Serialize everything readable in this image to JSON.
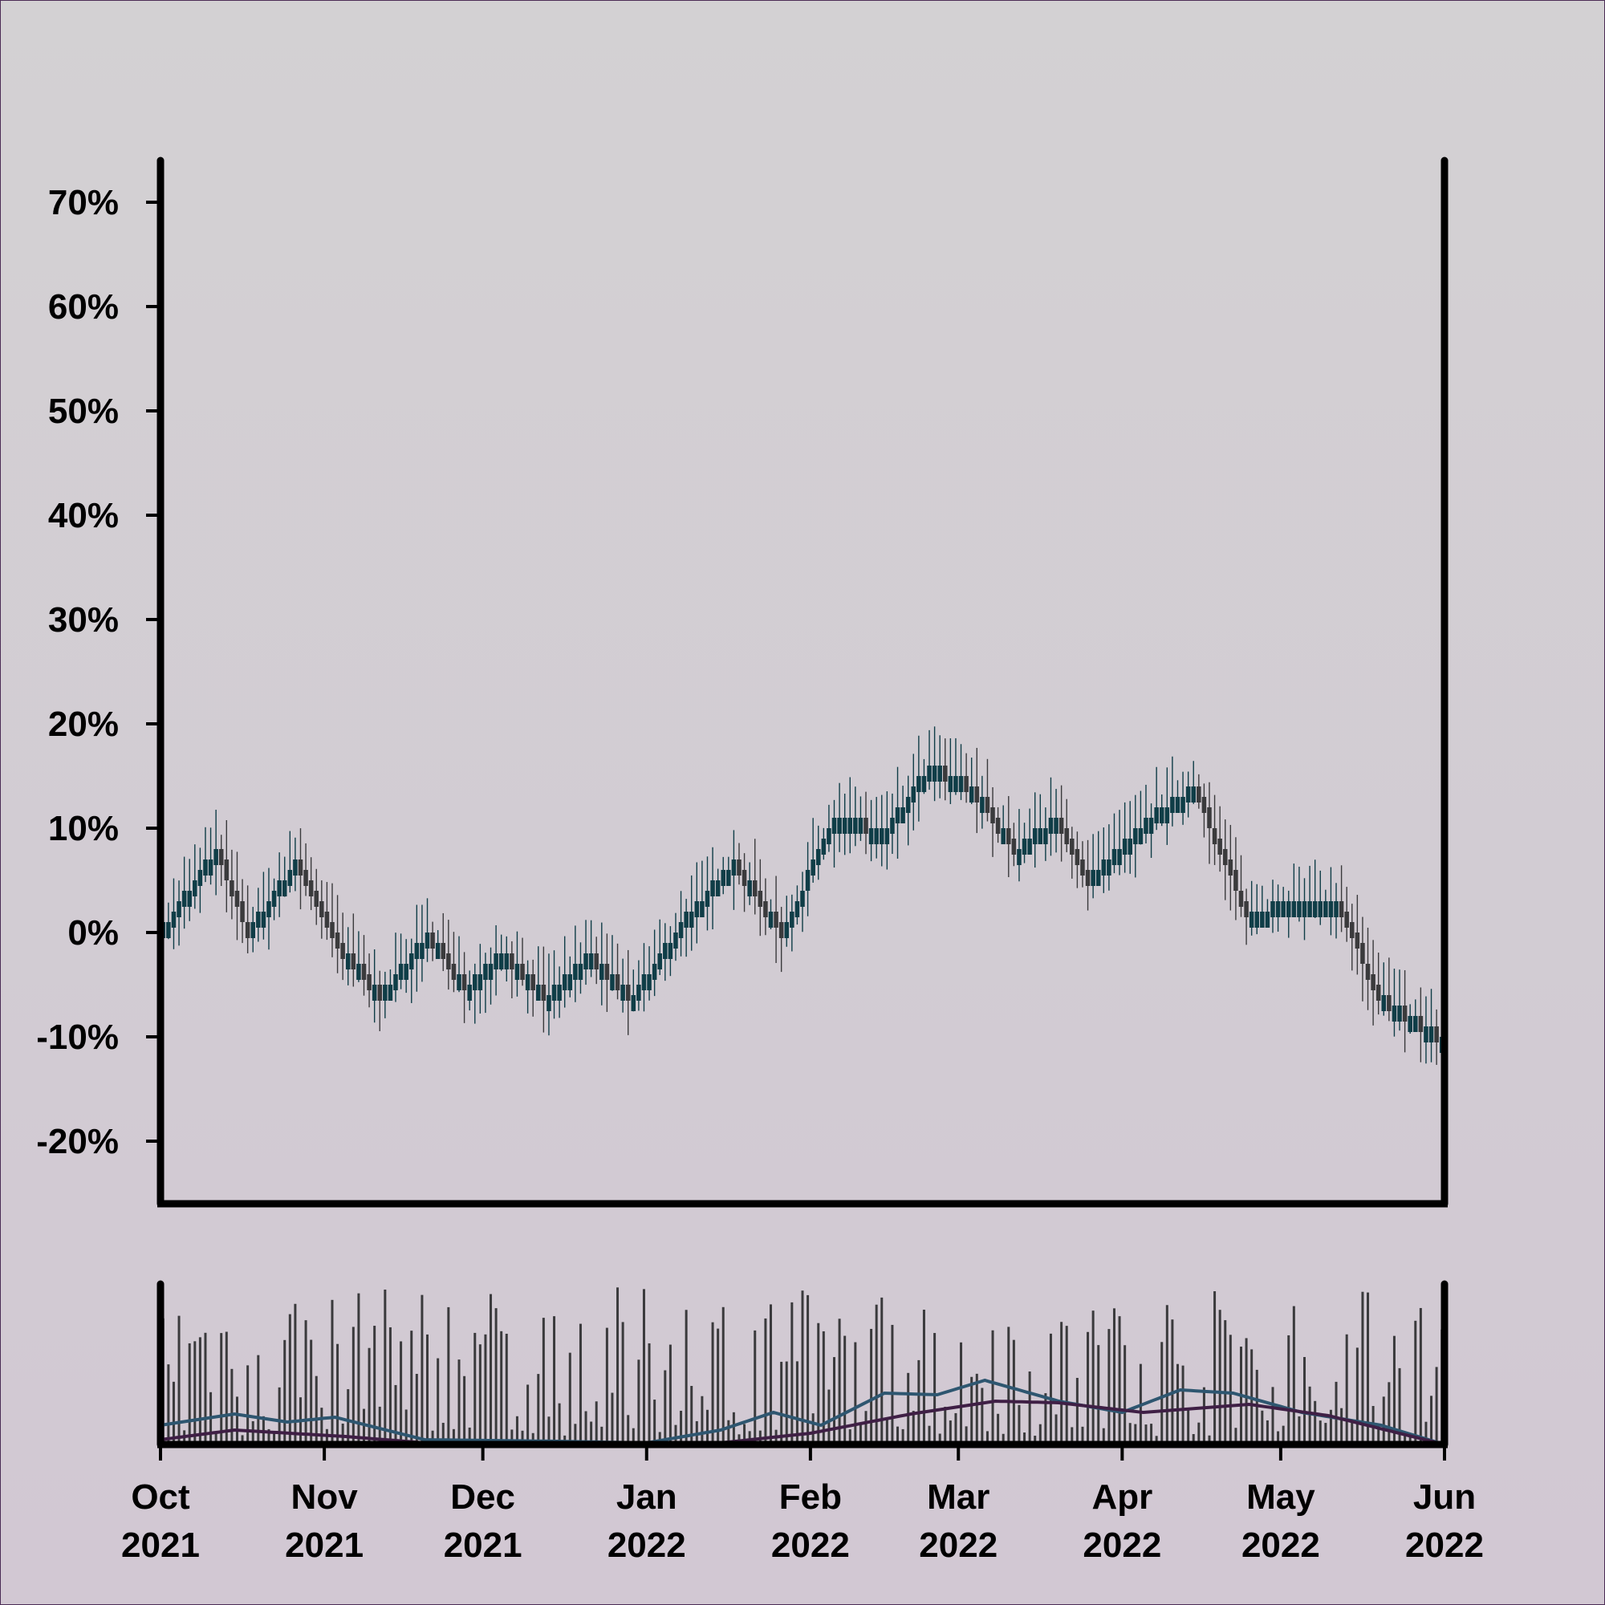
{
  "chart_data": [
    {
      "type": "candlestick",
      "panel": "price",
      "title": "",
      "xlabel": "",
      "ylabel": "",
      "ylim": [
        -26,
        74
      ],
      "y_ticks": [
        70,
        60,
        50,
        40,
        30,
        20,
        10,
        0,
        -10,
        -20
      ],
      "y_tick_labels": [
        "70%",
        "60%",
        "50%",
        "40%",
        "30%",
        "20%",
        "10%",
        "0%",
        "-10%",
        "-20%"
      ],
      "up_color": "#0f3d47",
      "down_color": "#3a3a3c",
      "grid": false,
      "x_range": [
        "2021-10-01",
        "2022-06-01"
      ],
      "close_path": [
        [
          "2021-10-01",
          0
        ],
        [
          "2021-10-12",
          8
        ],
        [
          "2021-10-18",
          0
        ],
        [
          "2021-10-27",
          7
        ],
        [
          "2021-11-04",
          -1
        ],
        [
          "2021-11-12",
          -6
        ],
        [
          "2021-11-21",
          0
        ],
        [
          "2021-11-28",
          -5
        ],
        [
          "2021-12-05",
          -2
        ],
        [
          "2021-12-14",
          -6
        ],
        [
          "2021-12-21",
          -2
        ],
        [
          "2021-12-30",
          -6
        ],
        [
          "2022-01-08",
          1
        ],
        [
          "2022-01-18",
          7
        ],
        [
          "2022-01-27",
          0
        ],
        [
          "2022-02-06",
          11
        ],
        [
          "2022-02-16",
          10
        ],
        [
          "2022-02-24",
          16
        ],
        [
          "2022-03-04",
          14
        ],
        [
          "2022-03-12",
          8
        ],
        [
          "2022-03-20",
          11
        ],
        [
          "2022-03-26",
          5
        ],
        [
          "2022-04-06",
          11
        ],
        [
          "2022-04-15",
          14
        ],
        [
          "2022-04-25",
          2
        ],
        [
          "2022-05-05",
          3
        ],
        [
          "2022-05-12",
          3
        ],
        [
          "2022-05-20",
          -6
        ],
        [
          "2022-06-01",
          -10
        ]
      ]
    },
    {
      "type": "bar",
      "panel": "volume",
      "title": "",
      "xlabel": "",
      "ylabel": "",
      "bar_color": "#3a3a3c",
      "moving_averages": [
        {
          "color": "#2e5670",
          "points": [
            [
              "2021-10-01",
              12
            ],
            [
              "2021-10-15",
              19
            ],
            [
              "2021-10-25",
              14
            ],
            [
              "2021-11-03",
              17
            ],
            [
              "2021-11-20",
              3
            ],
            [
              "2021-12-15",
              2
            ],
            [
              "2022-01-01",
              1
            ],
            [
              "2022-01-15",
              9
            ],
            [
              "2022-01-25",
              20
            ],
            [
              "2022-02-03",
              12
            ],
            [
              "2022-02-15",
              32
            ],
            [
              "2022-02-25",
              31
            ],
            [
              "2022-03-06",
              40
            ],
            [
              "2022-03-20",
              27
            ],
            [
              "2022-04-01",
              20
            ],
            [
              "2022-04-12",
              34
            ],
            [
              "2022-04-22",
              32
            ],
            [
              "2022-05-05",
              20
            ],
            [
              "2022-05-20",
              12
            ],
            [
              "2022-06-01",
              0
            ]
          ]
        },
        {
          "color": "#3f1f45",
          "points": [
            [
              "2021-10-01",
              3
            ],
            [
              "2021-10-15",
              9
            ],
            [
              "2021-11-05",
              5
            ],
            [
              "2021-11-20",
              1
            ],
            [
              "2022-01-15",
              1
            ],
            [
              "2022-02-01",
              7
            ],
            [
              "2022-02-20",
              19
            ],
            [
              "2022-03-08",
              27
            ],
            [
              "2022-03-20",
              26
            ],
            [
              "2022-04-05",
              20
            ],
            [
              "2022-04-25",
              25
            ],
            [
              "2022-05-10",
              18
            ],
            [
              "2022-06-01",
              0
            ]
          ]
        }
      ]
    }
  ],
  "x_axis": {
    "ticks": [
      {
        "date": "2021-10-01",
        "month": "Oct",
        "year": "2021"
      },
      {
        "date": "2021-11-01",
        "month": "Nov",
        "year": "2021"
      },
      {
        "date": "2021-12-01",
        "month": "Dec",
        "year": "2021"
      },
      {
        "date": "2022-01-01",
        "month": "Jan",
        "year": "2022"
      },
      {
        "date": "2022-02-01",
        "month": "Feb",
        "year": "2022"
      },
      {
        "date": "2022-03-01",
        "month": "Mar",
        "year": "2022"
      },
      {
        "date": "2022-04-01",
        "month": "Apr",
        "year": "2022"
      },
      {
        "date": "2022-05-01",
        "month": "May",
        "year": "2022"
      },
      {
        "date": "2022-06-01",
        "month": "Jun",
        "year": "2022"
      }
    ]
  },
  "colors": {
    "background_top": "#d3d1d3",
    "background_bottom": "#d2c8d3",
    "frame": "#4b2c55",
    "axis": "#000000"
  }
}
